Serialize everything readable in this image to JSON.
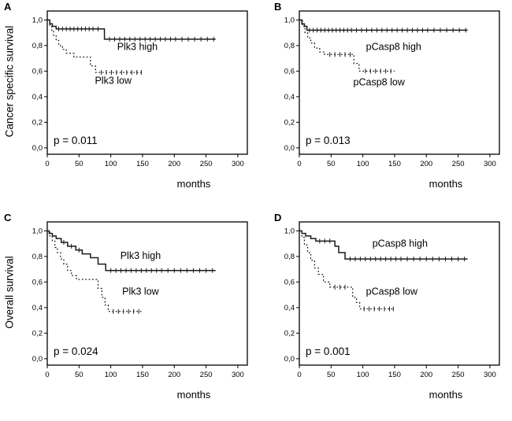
{
  "figure": {
    "row_labels": [
      "Cancer specific survival",
      "Overall survival"
    ],
    "xlabel": "months",
    "line_color": "#1a1a1a"
  },
  "chart_data": {
    "type": "line",
    "subtype": "kaplan-meier-step",
    "title": "",
    "x_axis": {
      "label": "months",
      "ticks": [
        0,
        50,
        100,
        150,
        200,
        250,
        300
      ],
      "range": [
        0,
        315
      ]
    },
    "y_axis": {
      "ticks": [
        "0,0",
        "0,2",
        "0,4",
        "0,6",
        "0,8",
        "1,0"
      ],
      "tick_values": [
        0,
        0.2,
        0.4,
        0.6,
        0.8,
        1.0
      ],
      "range": [
        0,
        1
      ]
    },
    "grid": false,
    "legend": "inline-labels",
    "panels": [
      {
        "letter": "A",
        "ylabel": "Cancer specific survival",
        "p_value": "p = 0.011",
        "series": [
          {
            "name": "Plk3 high",
            "style": "solid",
            "label_pos": [
              110,
              0.765
            ],
            "steps": [
              [
                0,
                1.0
              ],
              [
                4,
                0.97
              ],
              [
                8,
                0.95
              ],
              [
                14,
                0.93
              ],
              [
                90,
                0.85
              ]
            ],
            "end": 265,
            "censors": [
              18,
              24,
              30,
              36,
              42,
              48,
              54,
              60,
              66,
              72,
              80,
              98,
              106,
              114,
              122,
              130,
              138,
              146,
              154,
              162,
              170,
              178,
              186,
              194,
              202,
              212,
              222,
              232,
              242,
              252,
              262
            ]
          },
          {
            "name": "Plk3 low",
            "style": "dotted",
            "label_pos": [
              75,
              0.5
            ],
            "steps": [
              [
                0,
                1.0
              ],
              [
                4,
                0.96
              ],
              [
                7,
                0.92
              ],
              [
                10,
                0.88
              ],
              [
                14,
                0.84
              ],
              [
                18,
                0.8
              ],
              [
                24,
                0.77
              ],
              [
                30,
                0.74
              ],
              [
                42,
                0.71
              ],
              [
                68,
                0.64
              ],
              [
                76,
                0.59
              ]
            ],
            "end": 150,
            "censors": [
              85,
              93,
              101,
              109,
              117,
              125,
              133,
              141,
              148
            ]
          }
        ]
      },
      {
        "letter": "B",
        "ylabel": "Cancer specific survival",
        "p_value": "p = 0.013",
        "series": [
          {
            "name": "pCasp8 high",
            "style": "solid",
            "label_pos": [
              105,
              0.765
            ],
            "steps": [
              [
                0,
                1.0
              ],
              [
                4,
                0.97
              ],
              [
                8,
                0.95
              ],
              [
                12,
                0.92
              ]
            ],
            "end": 265,
            "censors": [
              16,
              22,
              28,
              34,
              40,
              46,
              52,
              58,
              64,
              70,
              76,
              82,
              90,
              98,
              106,
              114,
              122,
              130,
              138,
              146,
              154,
              162,
              170,
              178,
              186,
              194,
              202,
              212,
              222,
              232,
              242,
              252,
              262
            ]
          },
          {
            "name": "pCasp8 low",
            "style": "dotted",
            "label_pos": [
              85,
              0.49
            ],
            "steps": [
              [
                0,
                1.0
              ],
              [
                5,
                0.95
              ],
              [
                9,
                0.9
              ],
              [
                13,
                0.86
              ],
              [
                18,
                0.82
              ],
              [
                24,
                0.78
              ],
              [
                32,
                0.75
              ],
              [
                40,
                0.73
              ],
              [
                86,
                0.66
              ],
              [
                94,
                0.6
              ]
            ],
            "end": 150,
            "censors": [
              48,
              56,
              64,
              72,
              80,
              104,
              112,
              120,
              128,
              136,
              144
            ]
          }
        ]
      },
      {
        "letter": "C",
        "ylabel": "Overall survival",
        "p_value": "p = 0.024",
        "series": [
          {
            "name": "Plk3 high",
            "style": "solid",
            "label_pos": [
              115,
              0.78
            ],
            "steps": [
              [
                0,
                1.0
              ],
              [
                3,
                0.98
              ],
              [
                8,
                0.96
              ],
              [
                14,
                0.94
              ],
              [
                22,
                0.91
              ],
              [
                32,
                0.88
              ],
              [
                45,
                0.85
              ],
              [
                55,
                0.82
              ],
              [
                68,
                0.79
              ],
              [
                80,
                0.74
              ],
              [
                92,
                0.69
              ]
            ],
            "end": 265,
            "censors": [
              26,
              38,
              50,
              100,
              108,
              116,
              124,
              132,
              140,
              148,
              156,
              164,
              172,
              180,
              190,
              200,
              210,
              220,
              230,
              240,
              250,
              260
            ]
          },
          {
            "name": "Plk3 low",
            "style": "dotted",
            "label_pos": [
              118,
              0.5
            ],
            "steps": [
              [
                0,
                1.0
              ],
              [
                4,
                0.96
              ],
              [
                8,
                0.92
              ],
              [
                12,
                0.87
              ],
              [
                16,
                0.83
              ],
              [
                21,
                0.78
              ],
              [
                26,
                0.74
              ],
              [
                32,
                0.69
              ],
              [
                38,
                0.65
              ],
              [
                46,
                0.62
              ],
              [
                80,
                0.55
              ],
              [
                86,
                0.48
              ],
              [
                91,
                0.42
              ],
              [
                96,
                0.37
              ]
            ],
            "end": 150,
            "censors": [
              104,
              112,
              120,
              128,
              136,
              144
            ]
          }
        ]
      },
      {
        "letter": "D",
        "ylabel": "Overall survival",
        "p_value": "p = 0.001",
        "series": [
          {
            "name": "pCasp8 high",
            "style": "solid",
            "label_pos": [
              115,
              0.875
            ],
            "steps": [
              [
                0,
                1.0
              ],
              [
                4,
                0.98
              ],
              [
                10,
                0.96
              ],
              [
                18,
                0.94
              ],
              [
                26,
                0.92
              ],
              [
                56,
                0.88
              ],
              [
                62,
                0.83
              ],
              [
                72,
                0.78
              ]
            ],
            "end": 265,
            "censors": [
              32,
              40,
              48,
              80,
              88,
              96,
              104,
              112,
              120,
              128,
              136,
              144,
              152,
              160,
              170,
              180,
              190,
              200,
              210,
              220,
              230,
              240,
              250,
              260
            ]
          },
          {
            "name": "pCasp8 low",
            "style": "dotted",
            "label_pos": [
              105,
              0.5
            ],
            "steps": [
              [
                0,
                1.0
              ],
              [
                4,
                0.95
              ],
              [
                8,
                0.89
              ],
              [
                13,
                0.83
              ],
              [
                18,
                0.77
              ],
              [
                24,
                0.71
              ],
              [
                30,
                0.66
              ],
              [
                38,
                0.6
              ],
              [
                48,
                0.56
              ],
              [
                84,
                0.48
              ],
              [
                90,
                0.44
              ],
              [
                95,
                0.39
              ]
            ],
            "end": 150,
            "censors": [
              56,
              64,
              72,
              102,
              110,
              118,
              126,
              134,
              142,
              148
            ]
          }
        ]
      }
    ]
  }
}
